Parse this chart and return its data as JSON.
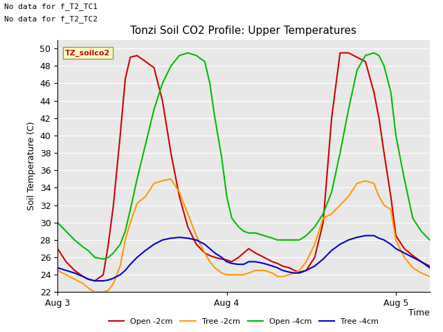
{
  "title": "Tonzi Soil CO2 Profile: Upper Temperatures",
  "ylabel": "Soil Temperature (C)",
  "time_label": "Time",
  "annotations": [
    "No data for f_T2_TC1",
    "No data for f_T2_TC2"
  ],
  "legend_box_label": "TZ_soilco2",
  "ylim": [
    22,
    51
  ],
  "yticks": [
    22,
    24,
    26,
    28,
    30,
    32,
    34,
    36,
    38,
    40,
    42,
    44,
    46,
    48,
    50
  ],
  "xlim": [
    0,
    2.2
  ],
  "xtick_positions": [
    0,
    1.0,
    2.0
  ],
  "xtick_labels": [
    "Aug 3",
    "Aug 4",
    "Aug 5"
  ],
  "bg_color": "#e8e8e8",
  "series": {
    "open_2cm": {
      "color": "#cc0000",
      "label": "Open -2cm",
      "x": [
        0,
        0.05,
        0.1,
        0.15,
        0.18,
        0.22,
        0.27,
        0.3,
        0.33,
        0.37,
        0.4,
        0.43,
        0.47,
        0.52,
        0.57,
        0.62,
        0.67,
        0.72,
        0.77,
        0.82,
        0.87,
        0.9,
        0.93,
        0.97,
        1.0,
        1.03,
        1.07,
        1.1,
        1.13,
        1.17,
        1.22,
        1.27,
        1.3,
        1.33,
        1.37,
        1.4,
        1.43,
        1.47,
        1.52,
        1.57,
        1.62,
        1.67,
        1.72,
        1.77,
        1.82,
        1.87,
        1.9,
        1.93,
        1.97,
        2.0,
        2.05,
        2.1,
        2.15,
        2.2
      ],
      "y": [
        27.0,
        25.5,
        24.5,
        23.8,
        23.5,
        23.3,
        24.0,
        27.5,
        32.0,
        40.0,
        46.5,
        49.0,
        49.2,
        48.5,
        47.8,
        44.0,
        38.0,
        33.0,
        29.5,
        27.5,
        26.5,
        26.2,
        26.0,
        25.8,
        25.7,
        25.5,
        26.0,
        26.5,
        27.0,
        26.5,
        26.0,
        25.5,
        25.3,
        25.0,
        24.8,
        24.5,
        24.3,
        24.5,
        26.0,
        30.0,
        42.0,
        49.5,
        49.5,
        49.0,
        48.5,
        45.0,
        42.0,
        38.0,
        33.0,
        28.5,
        27.0,
        26.2,
        25.5,
        25.0
      ]
    },
    "tree_2cm": {
      "color": "#ff9900",
      "label": "Tree -2cm",
      "x": [
        0,
        0.05,
        0.1,
        0.15,
        0.18,
        0.22,
        0.27,
        0.3,
        0.33,
        0.37,
        0.4,
        0.43,
        0.47,
        0.52,
        0.57,
        0.62,
        0.67,
        0.72,
        0.77,
        0.82,
        0.87,
        0.9,
        0.93,
        0.97,
        1.0,
        1.03,
        1.07,
        1.1,
        1.13,
        1.17,
        1.22,
        1.27,
        1.3,
        1.33,
        1.37,
        1.4,
        1.43,
        1.47,
        1.52,
        1.57,
        1.62,
        1.67,
        1.72,
        1.77,
        1.82,
        1.87,
        1.9,
        1.93,
        1.97,
        2.0,
        2.05,
        2.1,
        2.15,
        2.2
      ],
      "y": [
        24.5,
        24.0,
        23.5,
        23.0,
        22.5,
        22.0,
        22.0,
        22.2,
        23.0,
        25.0,
        28.0,
        30.0,
        32.2,
        33.0,
        34.5,
        34.8,
        35.0,
        33.5,
        31.0,
        28.5,
        26.5,
        25.5,
        24.8,
        24.2,
        24.0,
        24.0,
        24.0,
        24.0,
        24.2,
        24.5,
        24.5,
        24.2,
        23.8,
        23.8,
        24.0,
        24.2,
        24.5,
        25.5,
        27.5,
        30.5,
        31.0,
        32.0,
        33.0,
        34.5,
        34.8,
        34.5,
        33.0,
        32.0,
        31.5,
        28.0,
        26.0,
        24.8,
        24.2,
        23.8
      ]
    },
    "open_4cm": {
      "color": "#00bb00",
      "label": "Open -4cm",
      "x": [
        0,
        0.05,
        0.1,
        0.15,
        0.18,
        0.22,
        0.27,
        0.3,
        0.33,
        0.37,
        0.4,
        0.43,
        0.47,
        0.52,
        0.57,
        0.62,
        0.67,
        0.72,
        0.77,
        0.82,
        0.87,
        0.9,
        0.93,
        0.97,
        1.0,
        1.03,
        1.07,
        1.1,
        1.13,
        1.17,
        1.22,
        1.27,
        1.3,
        1.33,
        1.37,
        1.4,
        1.43,
        1.47,
        1.52,
        1.57,
        1.62,
        1.67,
        1.72,
        1.77,
        1.82,
        1.87,
        1.9,
        1.93,
        1.97,
        2.0,
        2.05,
        2.1,
        2.15,
        2.2
      ],
      "y": [
        30.0,
        29.0,
        28.0,
        27.2,
        26.8,
        26.0,
        25.8,
        26.0,
        26.5,
        27.5,
        29.0,
        31.5,
        35.0,
        39.0,
        43.0,
        46.0,
        48.0,
        49.2,
        49.5,
        49.2,
        48.5,
        46.0,
        42.0,
        37.5,
        33.0,
        30.5,
        29.5,
        29.0,
        28.8,
        28.8,
        28.5,
        28.2,
        28.0,
        28.0,
        28.0,
        28.0,
        28.0,
        28.5,
        29.5,
        31.0,
        33.5,
        38.0,
        43.0,
        47.5,
        49.2,
        49.5,
        49.2,
        48.0,
        45.0,
        40.0,
        35.0,
        30.5,
        29.0,
        28.0
      ]
    },
    "tree_4cm": {
      "color": "#0000cc",
      "label": "Tree -4cm",
      "x": [
        0,
        0.05,
        0.1,
        0.15,
        0.18,
        0.22,
        0.27,
        0.3,
        0.33,
        0.37,
        0.4,
        0.43,
        0.47,
        0.52,
        0.57,
        0.62,
        0.67,
        0.72,
        0.77,
        0.82,
        0.87,
        0.9,
        0.93,
        0.97,
        1.0,
        1.03,
        1.07,
        1.1,
        1.13,
        1.17,
        1.22,
        1.27,
        1.3,
        1.33,
        1.37,
        1.4,
        1.43,
        1.47,
        1.52,
        1.57,
        1.62,
        1.67,
        1.72,
        1.77,
        1.82,
        1.87,
        1.9,
        1.93,
        1.97,
        2.0,
        2.05,
        2.1,
        2.15,
        2.2
      ],
      "y": [
        24.8,
        24.5,
        24.2,
        23.8,
        23.5,
        23.3,
        23.3,
        23.4,
        23.6,
        24.0,
        24.5,
        25.2,
        26.0,
        26.8,
        27.5,
        28.0,
        28.2,
        28.3,
        28.2,
        28.0,
        27.5,
        27.0,
        26.5,
        26.0,
        25.5,
        25.3,
        25.2,
        25.2,
        25.5,
        25.5,
        25.3,
        25.0,
        24.8,
        24.5,
        24.3,
        24.2,
        24.2,
        24.5,
        25.0,
        25.8,
        26.8,
        27.5,
        28.0,
        28.3,
        28.5,
        28.5,
        28.2,
        28.0,
        27.5,
        27.0,
        26.5,
        26.0,
        25.5,
        24.8
      ]
    }
  }
}
